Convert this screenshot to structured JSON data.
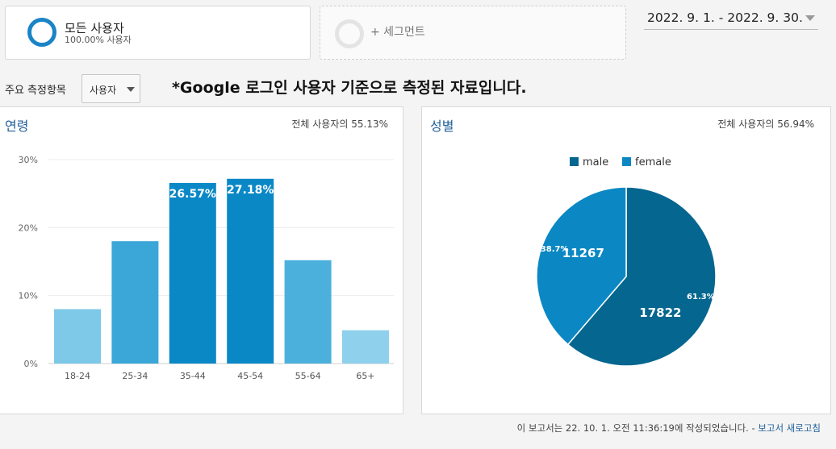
{
  "segments": {
    "active": {
      "title": "모든 사용자",
      "subtitle": "100.00% 사용자"
    },
    "add_label": "+ 세그먼트"
  },
  "date_range": "2022. 9. 1. - 2022. 9. 30.",
  "dimension": {
    "label": "주요 측정항목",
    "selected": "사용자"
  },
  "notice": "*Google 로그인 사용자 기준으로 측정된 자료입니다.",
  "age_panel": {
    "title": "연령",
    "share": "전체 사용자의 55.13%"
  },
  "gender_panel": {
    "title": "성별",
    "share": "전체 사용자의 56.94%"
  },
  "footer": {
    "text": "이 보고서는 22. 10. 1. 오전 11:36:19에 작성되었습니다. - ",
    "link": "보고서 새로고침"
  },
  "chart_data": [
    {
      "type": "bar",
      "categories": [
        "18-24",
        "25-34",
        "35-44",
        "45-54",
        "55-64",
        "65+"
      ],
      "values": [
        8.0,
        18.0,
        26.57,
        27.18,
        15.2,
        4.9
      ],
      "data_labels": [
        "",
        "",
        "26.57%",
        "27.18%",
        "",
        ""
      ],
      "colors": [
        "#7ec8e8",
        "#3aa7d8",
        "#0a88c6",
        "#0a88c6",
        "#4cb0dc",
        "#8fd0ec"
      ],
      "yticks": [
        "0%",
        "10%",
        "20%",
        "30%"
      ],
      "ylim": [
        0,
        30
      ]
    },
    {
      "type": "pie",
      "legend": [
        "male",
        "female"
      ],
      "values": [
        17822,
        11267
      ],
      "percent_labels": [
        "61.3%",
        "38.7%"
      ],
      "colors": [
        "#05668f",
        "#0b88c4"
      ],
      "legend_position": "top"
    }
  ]
}
